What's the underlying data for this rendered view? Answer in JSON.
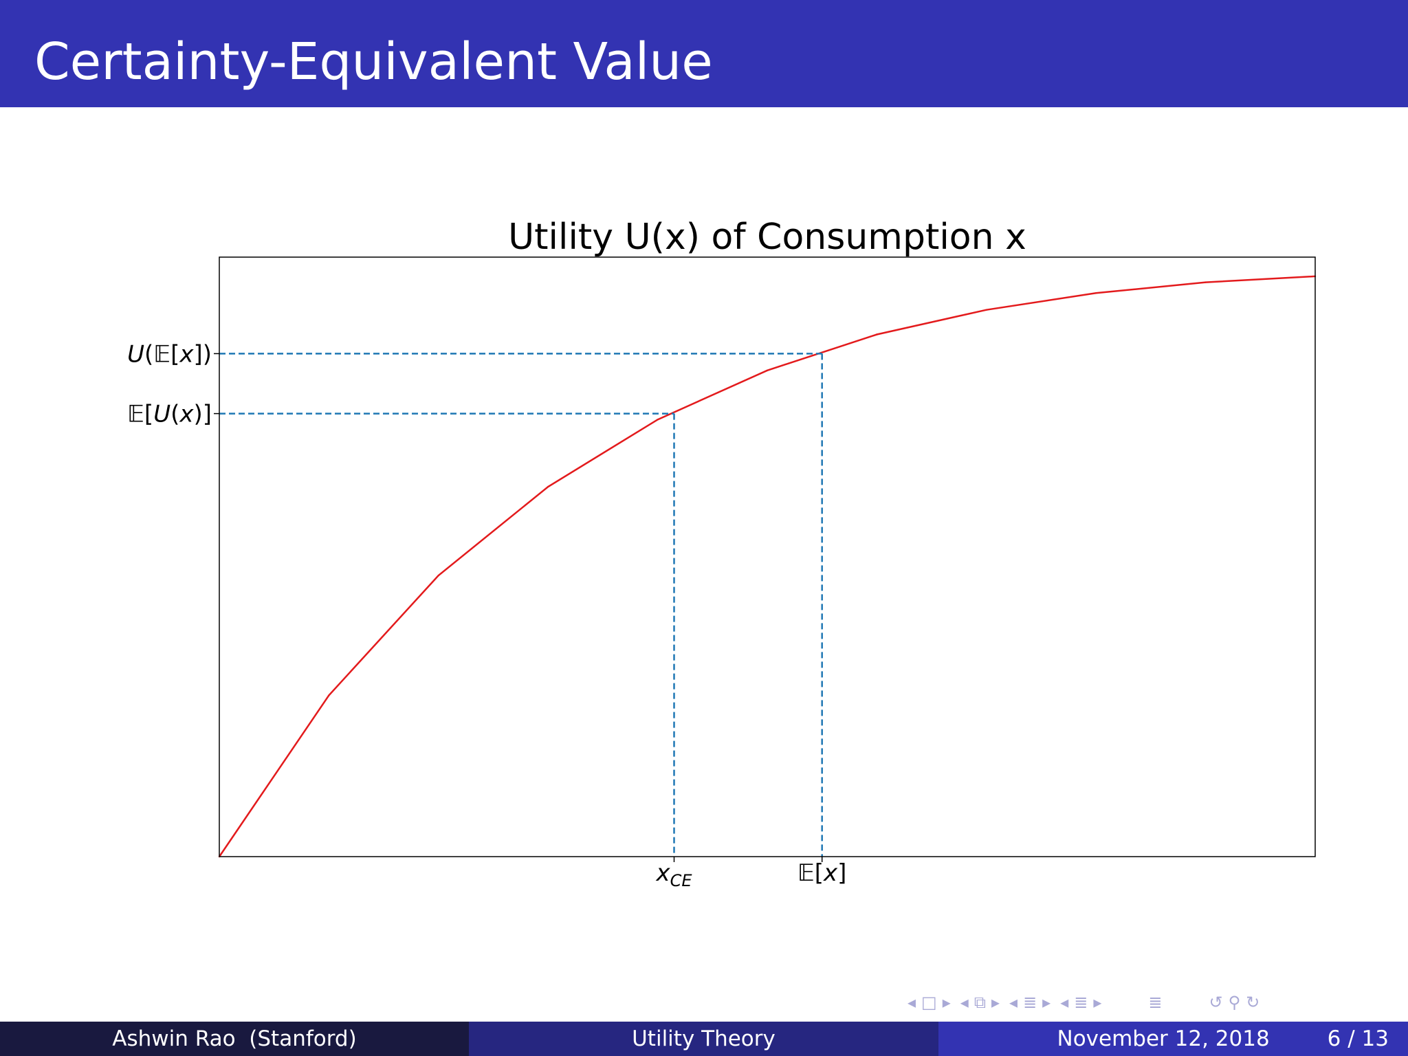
{
  "slide": {
    "title": "Certainty-Equivalent Value"
  },
  "chart_data": {
    "type": "line",
    "title": "Utility U(x) of Consumption x",
    "xlabel": "",
    "ylabel": "",
    "x": [
      0,
      1,
      2,
      3,
      4,
      5,
      6,
      7,
      8,
      9,
      10
    ],
    "series": [
      {
        "values": [
          0.0,
          0.269,
          0.469,
          0.617,
          0.729,
          0.811,
          0.871,
          0.912,
          0.94,
          0.958,
          0.968
        ]
      }
    ],
    "xlim": [
      0,
      10
    ],
    "ylim": [
      0,
      1
    ],
    "x_ticks": [
      {
        "value": 4.15,
        "label": "x_CE"
      },
      {
        "value": 5.5,
        "label": "E[x]"
      }
    ],
    "y_ticks": [
      {
        "value": 0.739,
        "label": "E[U(x)]"
      },
      {
        "value": 0.839,
        "label": "U(E[x])"
      }
    ],
    "guides": [
      {
        "x": 4.15,
        "y": 0.739
      },
      {
        "x": 5.5,
        "y": 0.839
      }
    ],
    "grid": false,
    "legend": "none",
    "colors": {
      "curve": "#e31a1c",
      "guide": "#1f77b4",
      "axes": "#000000"
    }
  },
  "nav": {
    "glyphs": [
      "◂",
      "□",
      "▸",
      "◂",
      "⧉",
      "▸",
      "◂",
      "≣",
      "▸",
      "◂",
      "≣",
      "▸",
      "≣",
      "↺",
      "⚲",
      "↻"
    ]
  },
  "footer": {
    "author": "Ashwin Rao  (Stanford)",
    "title": "Utility Theory",
    "date": "November 12, 2018",
    "page": "6 / 13"
  },
  "theme": {
    "accent": "#3333b2",
    "footer_dark": "#19193f",
    "footer_mid": "#262680"
  }
}
